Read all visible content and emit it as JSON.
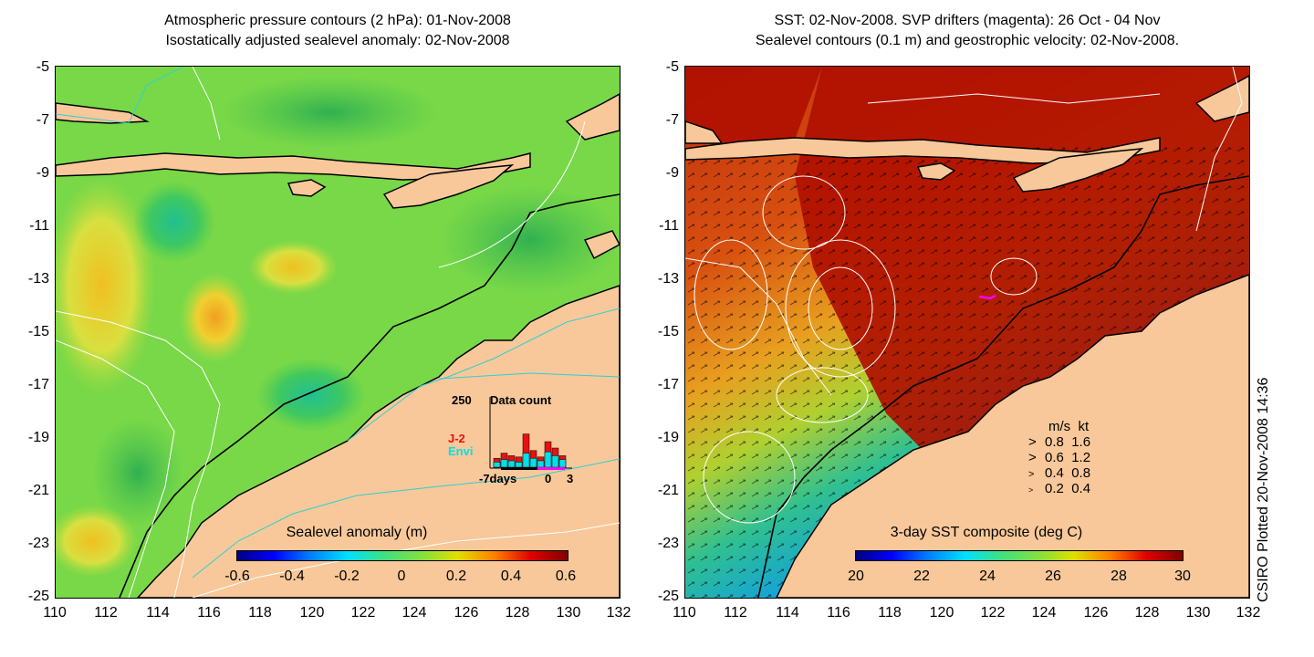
{
  "left_panel": {
    "title_line1": "Atmospheric pressure contours (2 hPa): 01-Nov-2008",
    "title_line2": "Isostatically adjusted sealevel anomaly: 02-Nov-2008",
    "colorbar_title": "Sealevel anomaly (m)",
    "colorbar_ticks": [
      "-0.6",
      "-0.4",
      "-0.2",
      "0",
      "0.2",
      "0.4",
      "0.6"
    ],
    "inset": {
      "title": "Data count",
      "ymax_label": "250",
      "series": [
        {
          "name": "J-2",
          "color": "#e81010"
        },
        {
          "name": "Envi",
          "color": "#00e0e8"
        }
      ],
      "xticks": [
        "-7days",
        "0",
        "3"
      ],
      "values_j2": [
        35,
        55,
        45,
        40,
        130,
        65,
        40,
        100,
        75,
        45
      ],
      "values_envi": [
        20,
        30,
        25,
        20,
        55,
        35,
        25,
        60,
        45,
        30
      ]
    }
  },
  "right_panel": {
    "title_line1": "SST: 02-Nov-2008. SVP drifters (magenta): 26 Oct - 04 Nov",
    "title_line2": "Sealevel contours (0.1 m) and geostrophic velocity: 02-Nov-2008.",
    "colorbar_title": "3-day SST composite (deg C)",
    "colorbar_ticks": [
      "20",
      "22",
      "24",
      "26",
      "28",
      "30"
    ],
    "velocity_legend": {
      "header_ms": "m/s",
      "header_kt": "kt",
      "rows": [
        {
          "ms": "0.8",
          "kt": "1.6"
        },
        {
          "ms": "0.6",
          "kt": "1.2"
        },
        {
          "ms": "0.4",
          "kt": "0.8"
        },
        {
          "ms": "0.2",
          "kt": "0.4"
        }
      ]
    }
  },
  "axes": {
    "y_ticks": [
      "-5",
      "-7",
      "-9",
      "-11",
      "-13",
      "-15",
      "-17",
      "-19",
      "-21",
      "-23",
      "-25"
    ],
    "x_ticks": [
      "110",
      "112",
      "114",
      "116",
      "118",
      "120",
      "122",
      "124",
      "126",
      "128",
      "130",
      "132"
    ]
  },
  "credit": "CSIRO Plotted 20-Nov-2008 14:36",
  "colors": {
    "land": "#f8c89a",
    "ocean_green": "#6fd65a",
    "sst_hot": "#b01000",
    "contour_cyan": "#30d0d0"
  }
}
